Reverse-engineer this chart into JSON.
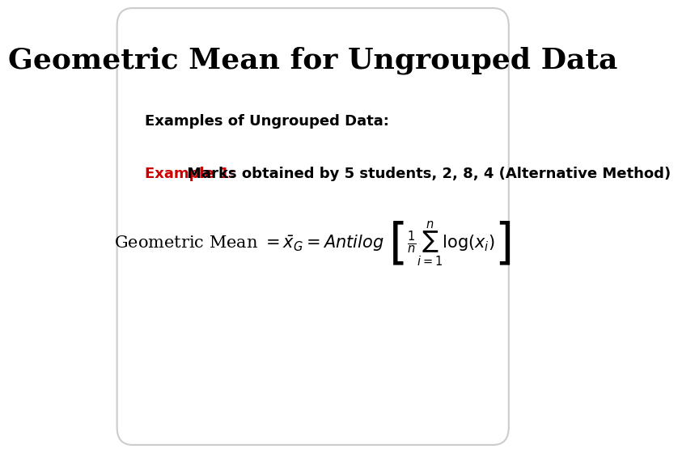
{
  "title": "Geometric Mean for Ungrouped Data",
  "subtitle": "Examples of Ungrouped Data:",
  "example_label": "Example 1:",
  "example_text": " Marks obtained by 5 students, 2, 8, 4 (Alternative Method)",
  "formula_label": "Geometric Mean = ",
  "bg_color": "#ffffff",
  "border_color": "#cccccc",
  "title_color": "#000000",
  "subtitle_color": "#000000",
  "example_label_color": "#cc0000",
  "example_text_color": "#000000",
  "title_fontsize": 26,
  "subtitle_fontsize": 13,
  "example_fontsize": 13,
  "formula_fontsize": 14
}
